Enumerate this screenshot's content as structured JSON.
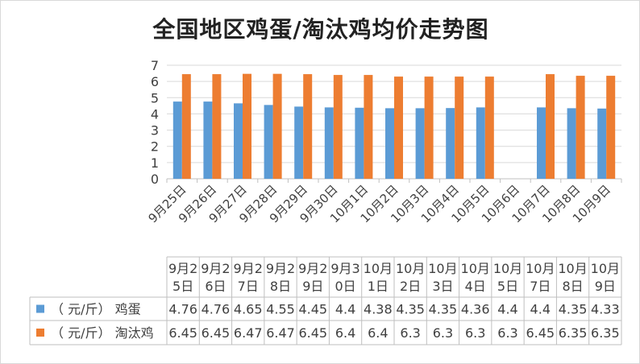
{
  "chart_data": {
    "type": "bar",
    "title": "全国地区鸡蛋/淘汰鸡均价走势图",
    "xlabel": "",
    "ylabel": "",
    "ylim": [
      0,
      7
    ],
    "yticks": [
      0,
      1,
      2,
      3,
      4,
      5,
      6,
      7
    ],
    "grid": true,
    "legend": "bottom-left (data table)",
    "categories": [
      "9月25日",
      "9月26日",
      "9月27日",
      "9月28日",
      "9月29日",
      "9月30日",
      "10月1日",
      "10月2日",
      "10月3日",
      "10月4日",
      "10月5日",
      "10月6日",
      "10月7日",
      "10月8日",
      "10月9日"
    ],
    "table_headers": [
      [
        "9月2",
        "5日"
      ],
      [
        "9月2",
        "6日"
      ],
      [
        "9月2",
        "7日"
      ],
      [
        "9月2",
        "8日"
      ],
      [
        "9月2",
        "9日"
      ],
      [
        "9月3",
        "0日"
      ],
      [
        "10月",
        "1日"
      ],
      [
        "10月",
        "2日"
      ],
      [
        "10月",
        "3日"
      ],
      [
        "10月",
        "4日"
      ],
      [
        "10月",
        "5日"
      ],
      [
        "10月",
        "7日"
      ],
      [
        "10月",
        "8日"
      ],
      [
        "10月",
        "9日"
      ]
    ],
    "series": [
      {
        "name": "（ 元/斤） 鸡蛋",
        "color": "#5b9bd5",
        "values": [
          4.76,
          4.76,
          4.65,
          4.55,
          4.45,
          4.4,
          4.38,
          4.35,
          4.35,
          4.36,
          4.4,
          null,
          4.4,
          4.35,
          4.33
        ],
        "table_values": [
          "4.76",
          "4.76",
          "4.65",
          "4.55",
          "4.45",
          "4.4",
          "4.38",
          "4.35",
          "4.35",
          "4.36",
          "4.4",
          "4.4",
          "4.35",
          "4.33"
        ]
      },
      {
        "name": "（ 元/斤） 淘汰鸡",
        "color": "#ed7d31",
        "values": [
          6.45,
          6.45,
          6.47,
          6.47,
          6.45,
          6.4,
          6.4,
          6.3,
          6.3,
          6.3,
          6.3,
          null,
          6.45,
          6.35,
          6.35
        ],
        "table_values": [
          "6.45",
          "6.45",
          "6.47",
          "6.47",
          "6.45",
          "6.4",
          "6.4",
          "6.3",
          "6.3",
          "6.3",
          "6.3",
          "6.45",
          "6.35",
          "6.35"
        ]
      }
    ]
  }
}
